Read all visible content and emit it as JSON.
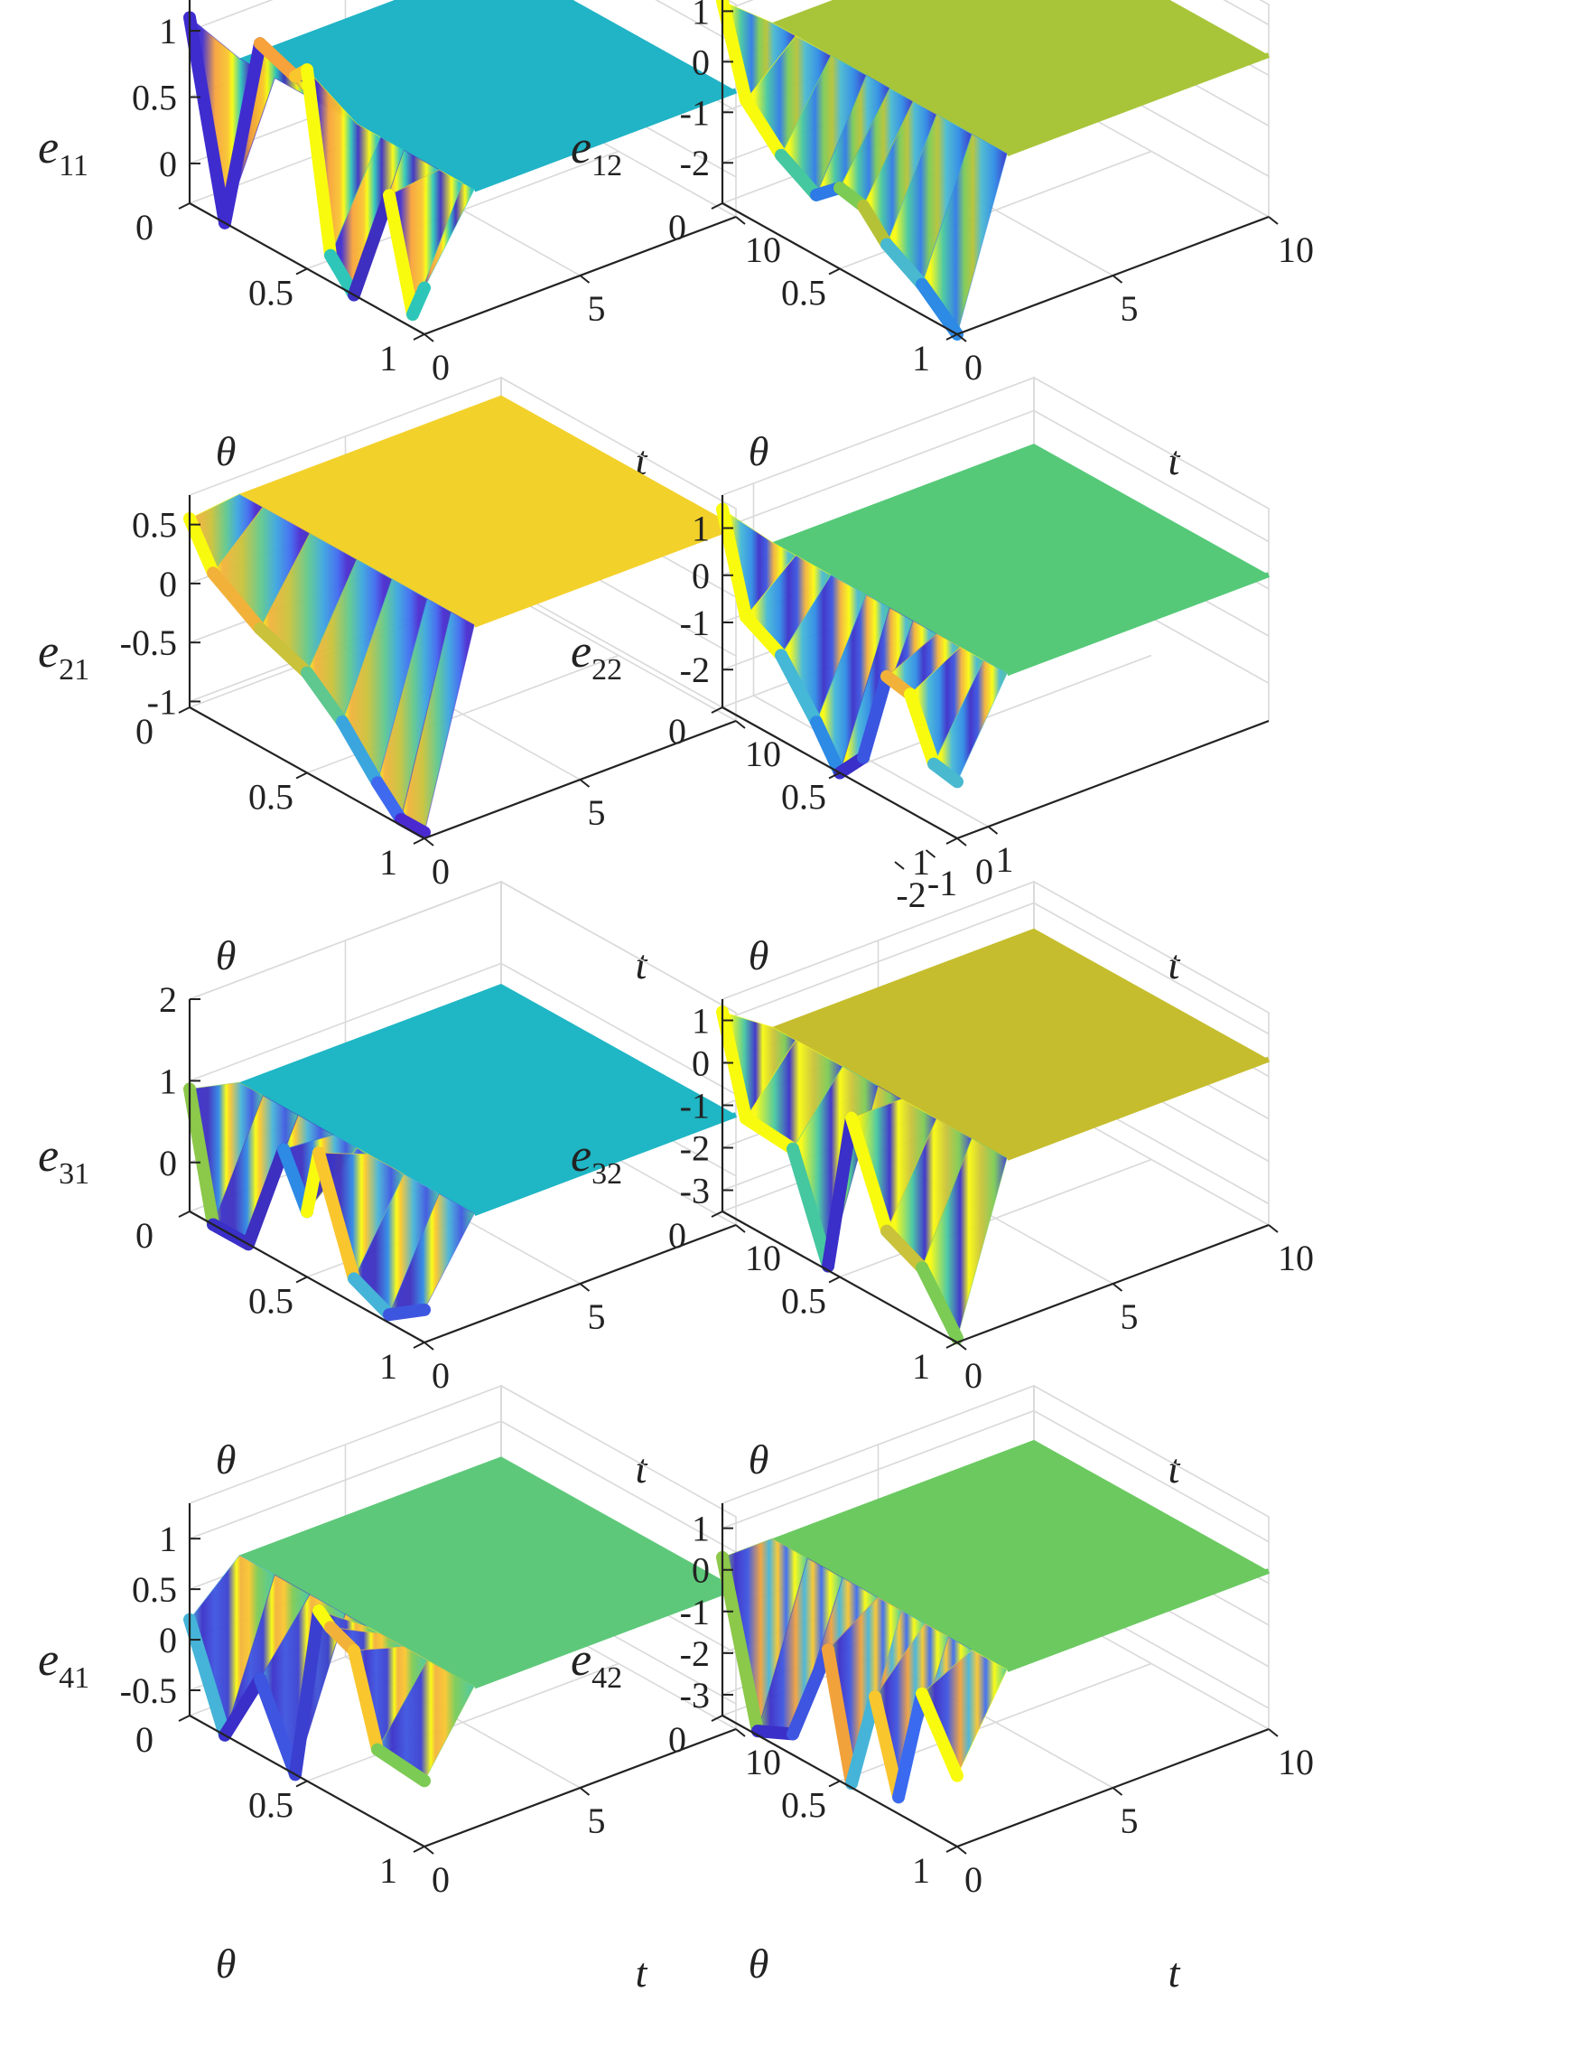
{
  "chart_data": [
    {
      "type": "surface",
      "zlabel_base": "e",
      "zlabel_sub": "11",
      "xlabel": "θ",
      "ylabel": "t",
      "x_ticks": [
        "0",
        "0.5",
        "1"
      ],
      "x_tick_values": [
        0,
        0.5,
        1
      ],
      "xlim": [
        0,
        1
      ],
      "y_ticks": [
        "0",
        "5",
        "10"
      ],
      "y_tick_values": [
        0,
        5,
        10
      ],
      "ylim": [
        0,
        10
      ],
      "z_ticks": [
        "0",
        "0.5",
        "1"
      ],
      "z_tick_values": [
        0,
        0.5,
        1
      ],
      "zlim": [
        -0.3,
        1.3
      ],
      "colormap": "parula",
      "grid": true,
      "edge_theta": [
        0,
        0.15,
        0.3,
        0.45,
        0.5,
        0.6,
        0.7,
        0.85,
        0.95,
        1
      ],
      "edge_values": [
        1.1,
        -0.3,
        1.2,
        1.1,
        1.2,
        -0.1,
        -0.3,
        0.6,
        -0.2,
        0.05
      ],
      "edge_colors": [
        "#3f2ccf",
        "#3f2ccf",
        "#f7a23a",
        "#f9c62e",
        "#f9fb0e",
        "#2ec6b8",
        "#3d2fbf",
        "#f9fb0e",
        "#2ec6b8",
        "#2ec6b8"
      ],
      "steady_value": 0.65,
      "steady_color": "#21b3c6"
    },
    {
      "type": "surface",
      "zlabel_base": "e",
      "zlabel_sub": "12",
      "xlabel": "θ",
      "ylabel": "t",
      "x_ticks": [
        "0",
        "0.5",
        "1"
      ],
      "x_tick_values": [
        0,
        0.5,
        1
      ],
      "xlim": [
        0,
        1
      ],
      "y_ticks": [
        "0",
        "5",
        "10"
      ],
      "y_tick_values": [
        0,
        5,
        10
      ],
      "ylim": [
        0,
        10
      ],
      "z_ticks": [
        "-2",
        "-1",
        "0",
        "1"
      ],
      "z_tick_values": [
        -2,
        -1,
        0,
        1
      ],
      "zlim": [
        -2.8,
        1.4
      ],
      "colormap": "parula",
      "grid": true,
      "edge_theta": [
        0,
        0.1,
        0.25,
        0.4,
        0.5,
        0.6,
        0.7,
        0.85,
        1
      ],
      "edge_values": [
        1.2,
        -0.5,
        -1.2,
        -1.6,
        -1.2,
        -1.3,
        -1.8,
        -2.2,
        -2.8
      ],
      "edge_colors": [
        "#f9fb0e",
        "#f9fb0e",
        "#45c7a0",
        "#2e7ae6",
        "#7ccb55",
        "#b6c236",
        "#49b9d0",
        "#2e8be5",
        "#3430c8"
      ],
      "steady_value": 0.4,
      "steady_color": "#a8c53a"
    },
    {
      "type": "surface",
      "zlabel_base": "e",
      "zlabel_sub": "21",
      "xlabel": "θ",
      "ylabel": "t",
      "x_ticks": [
        "0",
        "0.5",
        "1"
      ],
      "x_tick_values": [
        0,
        0.5,
        1
      ],
      "xlim": [
        0,
        1
      ],
      "y_ticks": [
        "0",
        "5",
        "10"
      ],
      "y_tick_values": [
        0,
        5,
        10
      ],
      "ylim": [
        0,
        10
      ],
      "z_ticks": [
        "-1",
        "-0.5",
        "0",
        "0.5"
      ],
      "z_tick_values": [
        -1,
        -0.5,
        0,
        0.5
      ],
      "zlim": [
        -1.05,
        0.75
      ],
      "colormap": "parula",
      "grid": true,
      "edge_theta": [
        0,
        0.1,
        0.3,
        0.5,
        0.65,
        0.8,
        0.9,
        1
      ],
      "edge_values": [
        0.55,
        0.2,
        -0.05,
        -0.2,
        -0.45,
        -0.8,
        -1.0,
        -1.0
      ],
      "edge_colors": [
        "#f9fb0e",
        "#f2b23a",
        "#c9c23a",
        "#5ec88f",
        "#3ba6de",
        "#3f6af0",
        "#4a2ad0",
        "#3d2fbf"
      ],
      "steady_value": 0.6,
      "steady_color": "#f3d12b"
    },
    {
      "type": "surface",
      "zlabel_base": "e",
      "zlabel_sub": "22",
      "xlabel": "θ",
      "ylabel": "t",
      "x_ticks": [
        "0",
        "0.5",
        "1"
      ],
      "x_tick_values": [
        0,
        0.5,
        1
      ],
      "xlim": [
        0,
        1
      ],
      "y_ticks": [
        "-2",
        "-1",
        "0",
        "1"
      ],
      "y_tick_values": [
        -2,
        -1,
        0,
        1
      ],
      "z_ticks": [
        "-2",
        "-1",
        "0",
        "1"
      ],
      "z_tick_values": [
        -2,
        -1,
        0,
        1
      ],
      "zlim": [
        -2.8,
        1.7
      ],
      "colormap": "parula",
      "grid": true,
      "edge_theta": [
        0,
        0.1,
        0.25,
        0.4,
        0.5,
        0.6,
        0.7,
        0.8,
        0.9,
        1
      ],
      "edge_values": [
        1.4,
        -0.6,
        -1.0,
        -2.0,
        -2.8,
        -2.2,
        -0.2,
        -0.3,
        -1.5,
        -1.6
      ],
      "edge_colors": [
        "#f9fb0e",
        "#f9fb0e",
        "#44b8d6",
        "#2e8be5",
        "#3a2fc8",
        "#3a55e0",
        "#f2b23a",
        "#f9fb0e",
        "#49b9d0",
        "#49c090"
      ],
      "steady_value": 0.3,
      "steady_color": "#55c978"
    },
    {
      "type": "surface",
      "zlabel_base": "e",
      "zlabel_sub": "31",
      "xlabel": "θ",
      "ylabel": "t",
      "x_ticks": [
        "0",
        "0.5",
        "1"
      ],
      "x_tick_values": [
        0,
        0.5,
        1
      ],
      "xlim": [
        0,
        1
      ],
      "y_ticks": [
        "0",
        "5",
        "10"
      ],
      "y_tick_values": [
        0,
        5,
        10
      ],
      "ylim": [
        0,
        10
      ],
      "z_ticks": [
        "0",
        "1",
        "2"
      ],
      "z_tick_values": [
        0,
        1,
        2
      ],
      "zlim": [
        -0.6,
        2.0
      ],
      "colormap": "parula",
      "grid": true,
      "edge_theta": [
        0,
        0.1,
        0.25,
        0.4,
        0.5,
        0.55,
        0.7,
        0.85,
        1
      ],
      "edge_values": [
        0.9,
        -0.6,
        -0.6,
        0.8,
        0.2,
        1.0,
        -0.3,
        -0.5,
        -0.2
      ],
      "edge_colors": [
        "#8cc84a",
        "#3a2fc8",
        "#3d2fbf",
        "#2e8be5",
        "#f9fb0e",
        "#f9c62e",
        "#45b4d8",
        "#3d56e0",
        "#45c7a0"
      ],
      "steady_value": 0.75,
      "steady_color": "#1fb6c5"
    },
    {
      "type": "surface",
      "zlabel_base": "e",
      "zlabel_sub": "32",
      "xlabel": "θ",
      "ylabel": "t",
      "x_ticks": [
        "0",
        "0.5",
        "1"
      ],
      "x_tick_values": [
        0,
        0.5,
        1
      ],
      "xlim": [
        0,
        1
      ],
      "y_ticks": [
        "0",
        "5",
        "10"
      ],
      "y_tick_values": [
        0,
        5,
        10
      ],
      "ylim": [
        0,
        10
      ],
      "z_ticks": [
        "-3",
        "-2",
        "-1",
        "0",
        "1"
      ],
      "z_tick_values": [
        -3,
        -2,
        -1,
        0,
        1
      ],
      "zlim": [
        -3.5,
        1.5
      ],
      "colormap": "parula",
      "grid": true,
      "edge_theta": [
        0,
        0.1,
        0.3,
        0.45,
        0.55,
        0.7,
        0.85,
        1
      ],
      "edge_values": [
        1.2,
        -1.0,
        -1.1,
        -3.4,
        0.4,
        -1.8,
        -2.2,
        -3.4
      ],
      "edge_colors": [
        "#f9fb0e",
        "#f9fb0e",
        "#45c7a0",
        "#3a2fc8",
        "#f9fb0e",
        "#c9c23a",
        "#7ccb55",
        "#3a3fd0"
      ],
      "steady_value": 0.4,
      "steady_color": "#c5bd2d"
    },
    {
      "type": "surface",
      "zlabel_base": "e",
      "zlabel_sub": "41",
      "xlabel": "θ",
      "ylabel": "t",
      "x_ticks": [
        "0",
        "0.5",
        "1"
      ],
      "x_tick_values": [
        0,
        0.5,
        1
      ],
      "xlim": [
        0,
        1
      ],
      "y_ticks": [
        "0",
        "5",
        "10"
      ],
      "y_tick_values": [
        0,
        5,
        10
      ],
      "ylim": [
        0,
        10
      ],
      "z_ticks": [
        "-0.5",
        "0",
        "0.5",
        "1"
      ],
      "z_tick_values": [
        -0.5,
        0,
        0.5,
        1
      ],
      "zlim": [
        -0.75,
        1.35
      ],
      "colormap": "parula",
      "grid": true,
      "edge_theta": [
        0,
        0.15,
        0.3,
        0.45,
        0.55,
        0.6,
        0.7,
        0.8,
        1
      ],
      "edge_values": [
        0.2,
        -0.75,
        0.0,
        -0.75,
        1.0,
        0.9,
        0.8,
        -0.05,
        -0.1
      ],
      "edge_colors": [
        "#45b4d8",
        "#3a2fc8",
        "#3d55e0",
        "#3a3fd0",
        "#f9fb0e",
        "#f2b23a",
        "#f9c62e",
        "#7ccb55",
        "#45c7a0"
      ],
      "steady_value": 0.65,
      "steady_color": "#5ec87a"
    },
    {
      "type": "surface",
      "zlabel_base": "e",
      "zlabel_sub": "42",
      "xlabel": "θ",
      "ylabel": "t",
      "x_ticks": [
        "0",
        "0.5",
        "1"
      ],
      "x_tick_values": [
        0,
        0.5,
        1
      ],
      "xlim": [
        0,
        1
      ],
      "y_ticks": [
        "0",
        "5",
        "10"
      ],
      "y_tick_values": [
        0,
        5,
        10
      ],
      "ylim": [
        0,
        10
      ],
      "z_ticks": [
        "-3",
        "-2",
        "-1",
        "0",
        "1"
      ],
      "z_tick_values": [
        -3,
        -2,
        -1,
        0,
        1
      ],
      "zlim": [
        -3.5,
        1.6
      ],
      "colormap": "parula",
      "grid": true,
      "edge_theta": [
        0,
        0.15,
        0.3,
        0.45,
        0.55,
        0.65,
        0.75,
        0.85,
        1
      ],
      "edge_values": [
        0.3,
        -3.4,
        -3.0,
        -0.5,
        -3.4,
        -1.0,
        -3.1,
        -0.3,
        -1.8
      ],
      "edge_colors": [
        "#8cc84a",
        "#3a2fc8",
        "#3d55e0",
        "#f2a23a",
        "#45b4d8",
        "#f9c62e",
        "#3a6af0",
        "#f9fb0e",
        "#45c7a0"
      ],
      "steady_value": 0.3,
      "steady_color": "#6bc960"
    }
  ]
}
